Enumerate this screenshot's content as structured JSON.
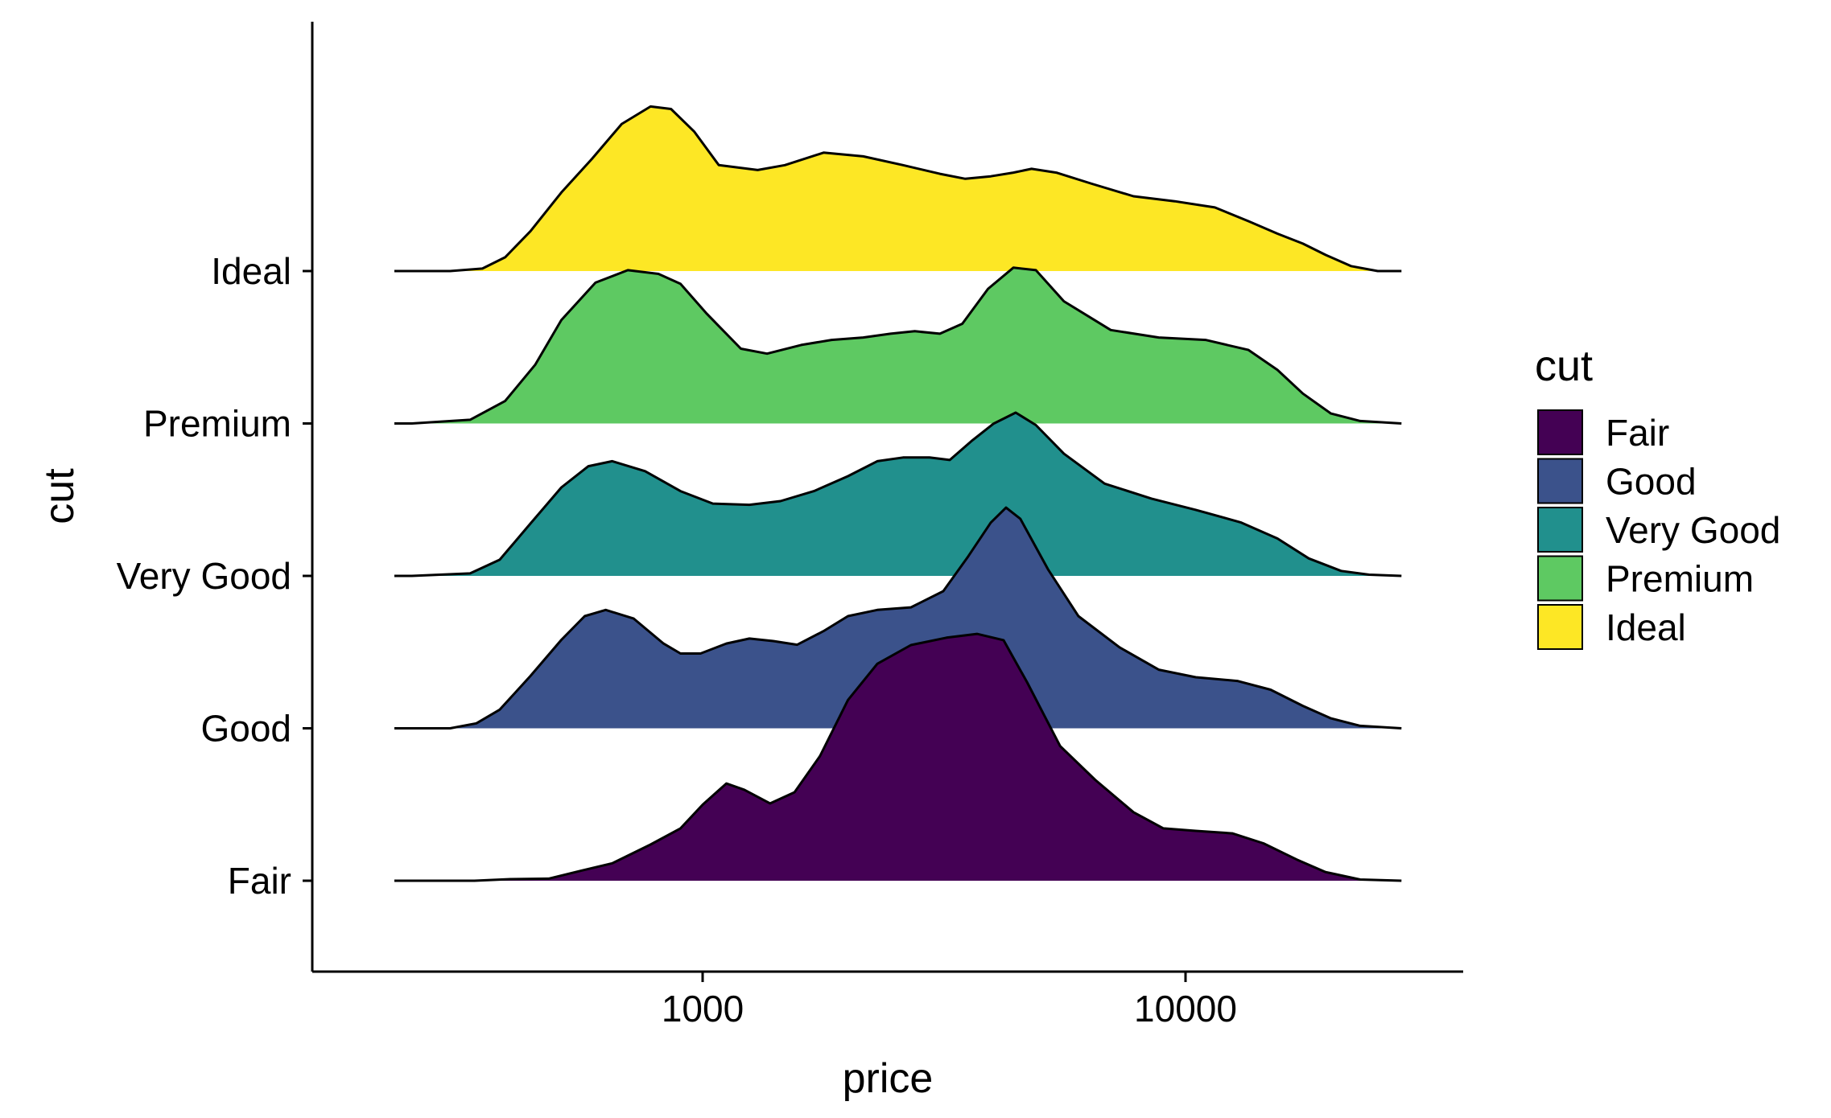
{
  "chart_data": {
    "type": "ridgeline",
    "title": "",
    "xlabel": "price",
    "ylabel": "cut",
    "x_scale": "log10",
    "xlim": [
      230,
      28000
    ],
    "x_ticks": [
      1000,
      10000
    ],
    "x_tick_labels": [
      "1000",
      "10000"
    ],
    "categories": [
      "Fair",
      "Good",
      "Very Good",
      "Premium",
      "Ideal"
    ],
    "grid": false,
    "legend": {
      "title": "cut",
      "position": "right",
      "entries": [
        "Fair",
        "Good",
        "Very Good",
        "Premium",
        "Ideal"
      ]
    },
    "series": [
      {
        "name": "Fair",
        "color": "#440154",
        "points": [
          [
            337,
            0
          ],
          [
            400,
            0.013
          ],
          [
            480,
            0.017
          ],
          [
            560,
            0.08
          ],
          [
            650,
            0.14
          ],
          [
            780,
            0.29
          ],
          [
            900,
            0.42
          ],
          [
            1000,
            0.61
          ],
          [
            1120,
            0.78
          ],
          [
            1220,
            0.73
          ],
          [
            1380,
            0.62
          ],
          [
            1550,
            0.71
          ],
          [
            1750,
            1.0
          ],
          [
            2000,
            1.45
          ],
          [
            2300,
            1.74
          ],
          [
            2700,
            1.89
          ],
          [
            3200,
            1.95
          ],
          [
            3700,
            1.98
          ],
          [
            4200,
            1.93
          ],
          [
            4700,
            1.59
          ],
          [
            5500,
            1.08
          ],
          [
            6500,
            0.81
          ],
          [
            7800,
            0.55
          ],
          [
            9000,
            0.42
          ],
          [
            10500,
            0.4
          ],
          [
            12500,
            0.38
          ],
          [
            14500,
            0.3
          ],
          [
            17000,
            0.17
          ],
          [
            19500,
            0.07
          ],
          [
            23000,
            0.01
          ],
          [
            28000,
            0
          ]
        ]
      },
      {
        "name": "Good",
        "color": "#3b528b",
        "points": [
          [
            300,
            0
          ],
          [
            340,
            0.04
          ],
          [
            380,
            0.15
          ],
          [
            440,
            0.42
          ],
          [
            510,
            0.71
          ],
          [
            570,
            0.9
          ],
          [
            630,
            0.95
          ],
          [
            720,
            0.88
          ],
          [
            830,
            0.68
          ],
          [
            900,
            0.6
          ],
          [
            990,
            0.6
          ],
          [
            1120,
            0.68
          ],
          [
            1250,
            0.72
          ],
          [
            1400,
            0.7
          ],
          [
            1570,
            0.67
          ],
          [
            1780,
            0.78
          ],
          [
            2000,
            0.9
          ],
          [
            2300,
            0.95
          ],
          [
            2700,
            0.97
          ],
          [
            3150,
            1.1
          ],
          [
            3550,
            1.38
          ],
          [
            3950,
            1.65
          ],
          [
            4250,
            1.77
          ],
          [
            4550,
            1.68
          ],
          [
            5200,
            1.27
          ],
          [
            6000,
            0.9
          ],
          [
            7300,
            0.65
          ],
          [
            8800,
            0.47
          ],
          [
            10500,
            0.41
          ],
          [
            12800,
            0.38
          ],
          [
            15000,
            0.31
          ],
          [
            17500,
            0.18
          ],
          [
            20000,
            0.08
          ],
          [
            23000,
            0.02
          ],
          [
            28000,
            0
          ]
        ]
      },
      {
        "name": "Very Good",
        "color": "#21908d",
        "points": [
          [
            250,
            0
          ],
          [
            330,
            0.02
          ],
          [
            380,
            0.13
          ],
          [
            440,
            0.42
          ],
          [
            510,
            0.71
          ],
          [
            580,
            0.88
          ],
          [
            650,
            0.92
          ],
          [
            760,
            0.84
          ],
          [
            900,
            0.68
          ],
          [
            1050,
            0.58
          ],
          [
            1250,
            0.57
          ],
          [
            1450,
            0.6
          ],
          [
            1700,
            0.68
          ],
          [
            2000,
            0.8
          ],
          [
            2300,
            0.92
          ],
          [
            2600,
            0.95
          ],
          [
            2950,
            0.95
          ],
          [
            3250,
            0.93
          ],
          [
            3600,
            1.08
          ],
          [
            4000,
            1.22
          ],
          [
            4450,
            1.31
          ],
          [
            4900,
            1.21
          ],
          [
            5600,
            0.98
          ],
          [
            6800,
            0.74
          ],
          [
            8500,
            0.62
          ],
          [
            10500,
            0.53
          ],
          [
            13000,
            0.43
          ],
          [
            15500,
            0.3
          ],
          [
            18000,
            0.14
          ],
          [
            21000,
            0.04
          ],
          [
            24000,
            0.01
          ],
          [
            28000,
            0
          ]
        ]
      },
      {
        "name": "Premium",
        "color": "#5ec962",
        "points": [
          [
            250,
            0
          ],
          [
            330,
            0.03
          ],
          [
            390,
            0.18
          ],
          [
            450,
            0.47
          ],
          [
            510,
            0.83
          ],
          [
            600,
            1.13
          ],
          [
            700,
            1.23
          ],
          [
            810,
            1.2
          ],
          [
            900,
            1.12
          ],
          [
            1020,
            0.88
          ],
          [
            1200,
            0.6
          ],
          [
            1360,
            0.56
          ],
          [
            1600,
            0.63
          ],
          [
            1850,
            0.67
          ],
          [
            2150,
            0.69
          ],
          [
            2450,
            0.72
          ],
          [
            2750,
            0.74
          ],
          [
            3100,
            0.72
          ],
          [
            3450,
            0.8
          ],
          [
            3900,
            1.08
          ],
          [
            4400,
            1.25
          ],
          [
            4900,
            1.23
          ],
          [
            5600,
            0.98
          ],
          [
            7000,
            0.75
          ],
          [
            8800,
            0.69
          ],
          [
            11000,
            0.67
          ],
          [
            13500,
            0.59
          ],
          [
            15500,
            0.43
          ],
          [
            17500,
            0.24
          ],
          [
            20000,
            0.08
          ],
          [
            23000,
            0.02
          ],
          [
            28000,
            0
          ]
        ]
      },
      {
        "name": "Ideal",
        "color": "#fde725",
        "points": [
          [
            300,
            0
          ],
          [
            350,
            0.02
          ],
          [
            390,
            0.11
          ],
          [
            440,
            0.32
          ],
          [
            510,
            0.63
          ],
          [
            590,
            0.9
          ],
          [
            680,
            1.18
          ],
          [
            780,
            1.32
          ],
          [
            860,
            1.3
          ],
          [
            960,
            1.12
          ],
          [
            1080,
            0.85
          ],
          [
            1300,
            0.81
          ],
          [
            1480,
            0.85
          ],
          [
            1780,
            0.95
          ],
          [
            2150,
            0.92
          ],
          [
            2600,
            0.85
          ],
          [
            3100,
            0.78
          ],
          [
            3500,
            0.74
          ],
          [
            3950,
            0.76
          ],
          [
            4400,
            0.79
          ],
          [
            4800,
            0.82
          ],
          [
            5400,
            0.79
          ],
          [
            6400,
            0.7
          ],
          [
            7800,
            0.6
          ],
          [
            9500,
            0.56
          ],
          [
            11500,
            0.51
          ],
          [
            13500,
            0.4
          ],
          [
            15500,
            0.3
          ],
          [
            17500,
            0.22
          ],
          [
            19500,
            0.13
          ],
          [
            22000,
            0.04
          ],
          [
            25000,
            0
          ],
          [
            28000,
            0
          ]
        ]
      }
    ]
  }
}
